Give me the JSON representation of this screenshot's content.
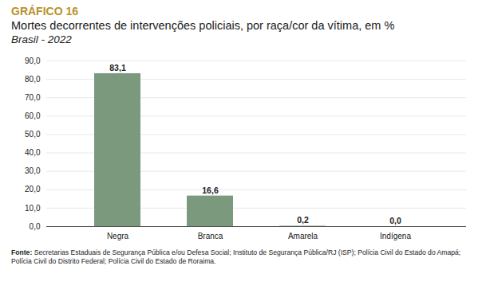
{
  "chart_data": {
    "type": "bar",
    "title": "GRÁFICO 16",
    "subtitle": "Mortes decorrentes de intervenções policiais, por raça/cor da vítima, em %",
    "note": "Brasil - 2022",
    "source": "Fonte: Secretarias Estaduais de Segurança Pública e/ou Defesa Social; Instituto de Segurança Pública/RJ (ISP); Polícia Civil do Estado do Amapá; Polícia Civil do Distrito Federal; Polícia Civil do Estado de Roraima.",
    "categories": [
      "Negra",
      "Branca",
      "Amarela",
      "Indígena"
    ],
    "values": [
      83.1,
      16.6,
      0.2,
      0.0
    ],
    "value_labels": [
      "83,1",
      "16,6",
      "0,2",
      "0,0"
    ],
    "color": "#7b9a7d",
    "ylim": [
      0,
      90
    ],
    "yticks": [
      {
        "value": 0,
        "label": "0,0"
      },
      {
        "value": 10,
        "label": "10,0"
      },
      {
        "value": 20,
        "label": "20,0"
      },
      {
        "value": 30,
        "label": "30,0"
      },
      {
        "value": 40,
        "label": "40,0"
      },
      {
        "value": 50,
        "label": "50,0"
      },
      {
        "value": 60,
        "label": "60,0"
      },
      {
        "value": 70,
        "label": "70,0"
      },
      {
        "value": 80,
        "label": "80,0"
      },
      {
        "value": 90,
        "label": "90,0"
      }
    ],
    "grid": true,
    "data_labels": true
  }
}
